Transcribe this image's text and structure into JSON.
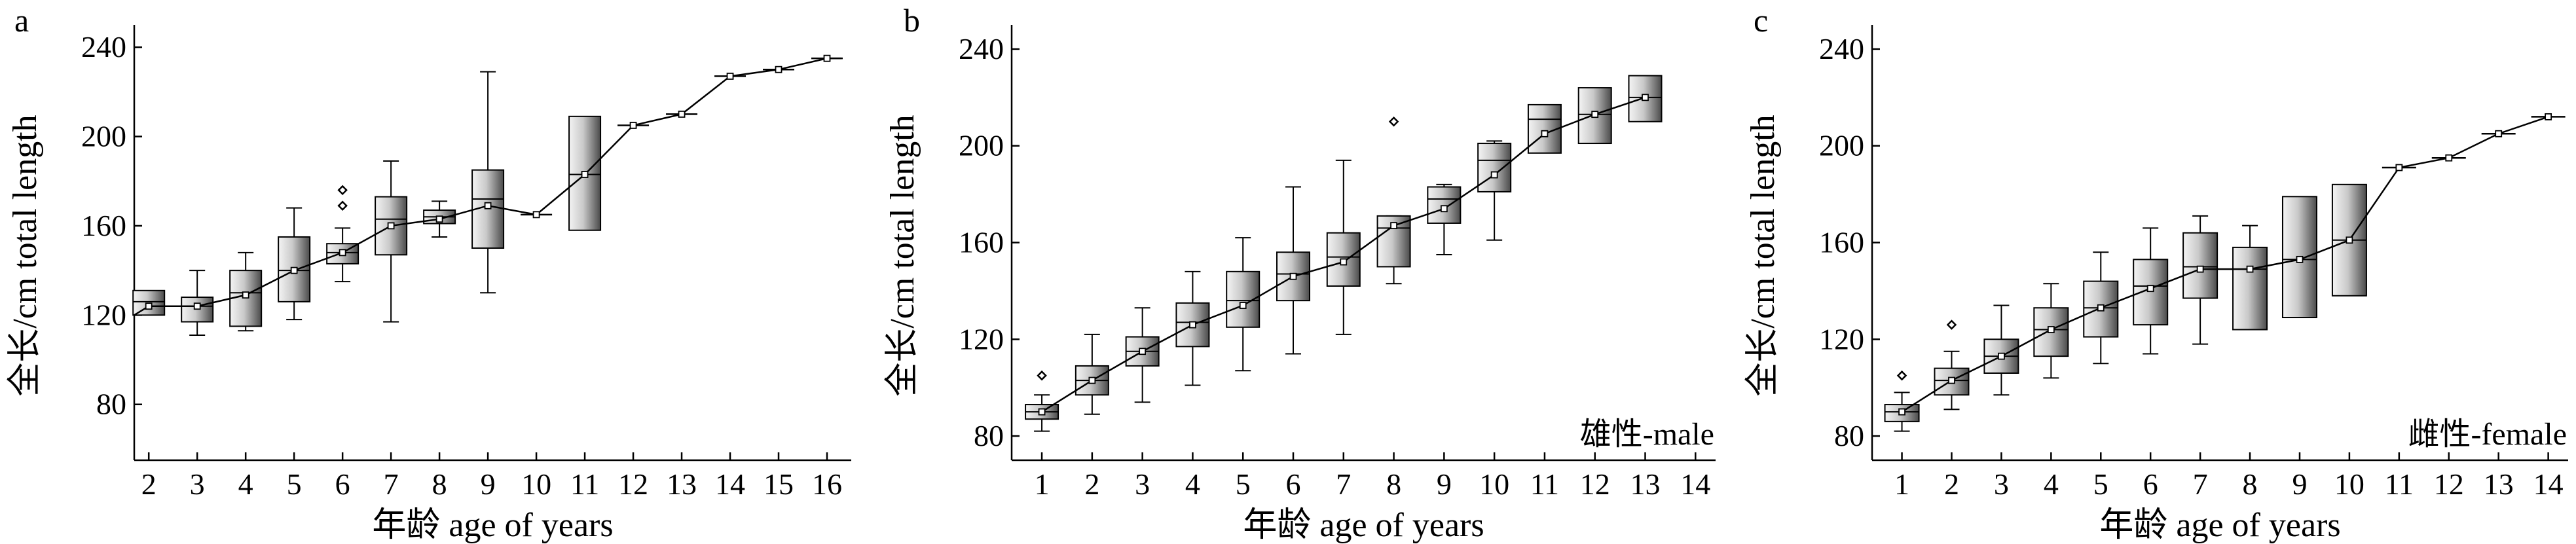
{
  "figure": {
    "panels": [
      {
        "letter": "a",
        "sex_label": ""
      },
      {
        "letter": "b",
        "sex_label": "雄性-male"
      },
      {
        "letter": "c",
        "sex_label": "雌性-female"
      }
    ]
  },
  "chart_data": [
    {
      "type": "box",
      "panel": "a",
      "xlabel": "年龄 age of years",
      "ylabel": "全长/cm total length",
      "x_ticks": [
        2,
        3,
        4,
        5,
        6,
        7,
        8,
        9,
        10,
        11,
        12,
        13,
        14,
        15,
        16
      ],
      "xlim": [
        1.7,
        16.5
      ],
      "y_ticks": [
        80,
        120,
        160,
        200,
        240
      ],
      "ylim": [
        55,
        250
      ],
      "mean_line": {
        "x": [
          1.7,
          2,
          3,
          4,
          5,
          6,
          7,
          8,
          9,
          10,
          11,
          12,
          13,
          14,
          15,
          16,
          16.3
        ],
        "y": [
          120,
          124,
          124,
          129,
          140,
          148,
          160,
          163,
          169,
          165,
          183,
          205,
          210,
          227,
          230,
          235,
          235
        ]
      },
      "boxes": [
        {
          "x": 2,
          "q1": 120,
          "median": 126,
          "q3": 131,
          "wlo": null,
          "whi": null,
          "mean": 124,
          "outliers": []
        },
        {
          "x": 3,
          "q1": 117,
          "median": 124,
          "q3": 128,
          "wlo": 111,
          "whi": 140,
          "mean": 124,
          "outliers": []
        },
        {
          "x": 4,
          "q1": 115,
          "median": 130,
          "q3": 140,
          "wlo": 113,
          "whi": 148,
          "mean": 129,
          "outliers": []
        },
        {
          "x": 5,
          "q1": 126,
          "median": 140,
          "q3": 155,
          "wlo": 118,
          "whi": 168,
          "mean": 140,
          "outliers": []
        },
        {
          "x": 6,
          "q1": 143,
          "median": 148,
          "q3": 152,
          "wlo": 135,
          "whi": 159,
          "mean": 148,
          "outliers": [
            169,
            176
          ]
        },
        {
          "x": 7,
          "q1": 147,
          "median": 163,
          "q3": 173,
          "wlo": 117,
          "whi": 189,
          "mean": 160,
          "outliers": []
        },
        {
          "x": 8,
          "q1": 161,
          "median": 164,
          "q3": 167,
          "wlo": 155,
          "whi": 171,
          "mean": 163,
          "outliers": []
        },
        {
          "x": 9,
          "q1": 150,
          "median": 172,
          "q3": 185,
          "wlo": 130,
          "whi": 229,
          "mean": 169,
          "outliers": []
        },
        {
          "x": 10,
          "q1": 165,
          "median": 165,
          "q3": 165,
          "wlo": null,
          "whi": null,
          "mean": 165,
          "outliers": []
        },
        {
          "x": 11,
          "q1": 158,
          "median": 183,
          "q3": 209,
          "wlo": null,
          "whi": null,
          "mean": 183,
          "outliers": []
        },
        {
          "x": 12,
          "q1": 205,
          "median": 205,
          "q3": 205,
          "wlo": null,
          "whi": null,
          "mean": 205,
          "outliers": []
        },
        {
          "x": 13,
          "q1": 210,
          "median": 210,
          "q3": 210,
          "wlo": null,
          "whi": null,
          "mean": 210,
          "outliers": []
        },
        {
          "x": 14,
          "q1": 227,
          "median": 227,
          "q3": 227,
          "wlo": null,
          "whi": null,
          "mean": 227,
          "outliers": []
        },
        {
          "x": 15,
          "q1": 230,
          "median": 230,
          "q3": 230,
          "wlo": null,
          "whi": null,
          "mean": 230,
          "outliers": []
        },
        {
          "x": 16,
          "q1": 235,
          "median": 235,
          "q3": 235,
          "wlo": null,
          "whi": null,
          "mean": 235,
          "outliers": []
        }
      ]
    },
    {
      "type": "box",
      "panel": "b",
      "xlabel": "年龄 age of years",
      "ylabel": "全长/cm total length",
      "x_ticks": [
        1,
        2,
        3,
        4,
        5,
        6,
        7,
        8,
        9,
        10,
        11,
        12,
        13,
        14
      ],
      "xlim": [
        0.4,
        14.4
      ],
      "y_ticks": [
        80,
        120,
        160,
        200,
        240
      ],
      "ylim": [
        70,
        250
      ],
      "mean_line": {
        "x": [
          1,
          2,
          3,
          4,
          5,
          6,
          7,
          8,
          9,
          10,
          11,
          12,
          13
        ],
        "y": [
          90,
          103,
          115,
          126,
          134,
          146,
          152,
          167,
          174,
          188,
          205,
          213,
          220
        ]
      },
      "boxes": [
        {
          "x": 1,
          "q1": 87,
          "median": 90,
          "q3": 93,
          "wlo": 82,
          "whi": 97,
          "mean": 90,
          "outliers": [
            105
          ]
        },
        {
          "x": 2,
          "q1": 97,
          "median": 103,
          "q3": 109,
          "wlo": 89,
          "whi": 122,
          "mean": 103,
          "outliers": []
        },
        {
          "x": 3,
          "q1": 109,
          "median": 115,
          "q3": 121,
          "wlo": 94,
          "whi": 133,
          "mean": 115,
          "outliers": []
        },
        {
          "x": 4,
          "q1": 117,
          "median": 127,
          "q3": 135,
          "wlo": 101,
          "whi": 148,
          "mean": 126,
          "outliers": []
        },
        {
          "x": 5,
          "q1": 125,
          "median": 136,
          "q3": 148,
          "wlo": 107,
          "whi": 162,
          "mean": 134,
          "outliers": []
        },
        {
          "x": 6,
          "q1": 136,
          "median": 147,
          "q3": 156,
          "wlo": 114,
          "whi": 183,
          "mean": 146,
          "outliers": []
        },
        {
          "x": 7,
          "q1": 142,
          "median": 154,
          "q3": 164,
          "wlo": 122,
          "whi": 194,
          "mean": 152,
          "outliers": []
        },
        {
          "x": 8,
          "q1": 150,
          "median": 166,
          "q3": 171,
          "wlo": 143,
          "whi": 171,
          "mean": 167,
          "outliers": [
            210
          ]
        },
        {
          "x": 9,
          "q1": 168,
          "median": 178,
          "q3": 183,
          "wlo": 155,
          "whi": 184,
          "mean": 174,
          "outliers": []
        },
        {
          "x": 10,
          "q1": 181,
          "median": 194,
          "q3": 201,
          "wlo": 161,
          "whi": 202,
          "mean": 188,
          "outliers": []
        },
        {
          "x": 11,
          "q1": 197,
          "median": 211,
          "q3": 217,
          "wlo": null,
          "whi": null,
          "mean": 205,
          "outliers": []
        },
        {
          "x": 12,
          "q1": 201,
          "median": 213,
          "q3": 224,
          "wlo": null,
          "whi": null,
          "mean": 213,
          "outliers": []
        },
        {
          "x": 13,
          "q1": 210,
          "median": 220,
          "q3": 229,
          "wlo": null,
          "whi": null,
          "mean": 220,
          "outliers": []
        }
      ]
    },
    {
      "type": "box",
      "panel": "c",
      "xlabel": "年龄 age of years",
      "ylabel": "全长/cm total length",
      "x_ticks": [
        1,
        2,
        3,
        4,
        5,
        6,
        7,
        8,
        9,
        10,
        11,
        12,
        13,
        14
      ],
      "xlim": [
        0.4,
        14.4
      ],
      "y_ticks": [
        80,
        120,
        160,
        200,
        240
      ],
      "ylim": [
        70,
        250
      ],
      "mean_line": {
        "x": [
          1,
          2,
          3,
          4,
          5,
          6,
          7,
          8,
          9,
          10,
          11,
          12,
          13,
          14
        ],
        "y": [
          90,
          103,
          113,
          124,
          133,
          141,
          149,
          149,
          153,
          161,
          191,
          195,
          205,
          212
        ]
      },
      "boxes": [
        {
          "x": 1,
          "q1": 86,
          "median": 90,
          "q3": 93,
          "wlo": 82,
          "whi": 98,
          "mean": 90,
          "outliers": [
            105
          ]
        },
        {
          "x": 2,
          "q1": 97,
          "median": 103,
          "q3": 108,
          "wlo": 91,
          "whi": 115,
          "mean": 103,
          "outliers": [
            126
          ]
        },
        {
          "x": 3,
          "q1": 106,
          "median": 113,
          "q3": 120,
          "wlo": 97,
          "whi": 134,
          "mean": 113,
          "outliers": []
        },
        {
          "x": 4,
          "q1": 113,
          "median": 124,
          "q3": 133,
          "wlo": 104,
          "whi": 143,
          "mean": 124,
          "outliers": []
        },
        {
          "x": 5,
          "q1": 121,
          "median": 133,
          "q3": 144,
          "wlo": 110,
          "whi": 156,
          "mean": 133,
          "outliers": []
        },
        {
          "x": 6,
          "q1": 126,
          "median": 142,
          "q3": 153,
          "wlo": 114,
          "whi": 166,
          "mean": 141,
          "outliers": []
        },
        {
          "x": 7,
          "q1": 137,
          "median": 150,
          "q3": 164,
          "wlo": 118,
          "whi": 171,
          "mean": 149,
          "outliers": []
        },
        {
          "x": 8,
          "q1": 124,
          "median": 149,
          "q3": 158,
          "wlo": 124,
          "whi": 167,
          "mean": 149,
          "outliers": []
        },
        {
          "x": 9,
          "q1": 129,
          "median": 153,
          "q3": 179,
          "wlo": null,
          "whi": null,
          "mean": 153,
          "outliers": []
        },
        {
          "x": 10,
          "q1": 138,
          "median": 161,
          "q3": 184,
          "wlo": null,
          "whi": null,
          "mean": 161,
          "outliers": []
        },
        {
          "x": 11,
          "q1": 191,
          "median": 191,
          "q3": 191,
          "wlo": null,
          "whi": null,
          "mean": 191,
          "outliers": []
        },
        {
          "x": 12,
          "q1": 195,
          "median": 195,
          "q3": 195,
          "wlo": null,
          "whi": null,
          "mean": 195,
          "outliers": []
        },
        {
          "x": 13,
          "q1": 205,
          "median": 205,
          "q3": 205,
          "wlo": null,
          "whi": null,
          "mean": 205,
          "outliers": []
        },
        {
          "x": 14,
          "q1": 212,
          "median": 212,
          "q3": 212,
          "wlo": null,
          "whi": null,
          "mean": 212,
          "outliers": []
        }
      ]
    }
  ]
}
